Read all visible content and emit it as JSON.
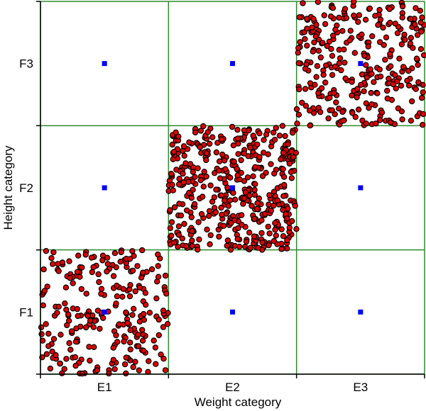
{
  "chart_data": {
    "type": "scatter",
    "subtype": "jittered categorical scatter",
    "xlabel": "Weight category",
    "ylabel": "Height category",
    "x_categories": [
      "E1",
      "E2",
      "E3"
    ],
    "y_categories": [
      "F1",
      "F2",
      "F3"
    ],
    "grid": true,
    "series": [
      {
        "role": "observations (jittered within cell)",
        "color": "#e00000",
        "cells": [
          {
            "x": "E1",
            "y": "F1",
            "approx_count": 250
          },
          {
            "x": "E2",
            "y": "F2",
            "approx_count": 450
          },
          {
            "x": "E3",
            "y": "F3",
            "approx_count": 300
          }
        ]
      },
      {
        "role": "cell centers",
        "color": "#0000ff",
        "marker": "square",
        "points": [
          {
            "x": "E1",
            "y": "F1"
          },
          {
            "x": "E2",
            "y": "F1"
          },
          {
            "x": "E3",
            "y": "F1"
          },
          {
            "x": "E1",
            "y": "F2"
          },
          {
            "x": "E2",
            "y": "F2"
          },
          {
            "x": "E3",
            "y": "F2"
          },
          {
            "x": "E1",
            "y": "F3"
          },
          {
            "x": "E2",
            "y": "F3"
          },
          {
            "x": "E3",
            "y": "F3"
          }
        ]
      }
    ],
    "colors": {
      "grid": "#2e8b2e",
      "axis": "#000000"
    }
  }
}
